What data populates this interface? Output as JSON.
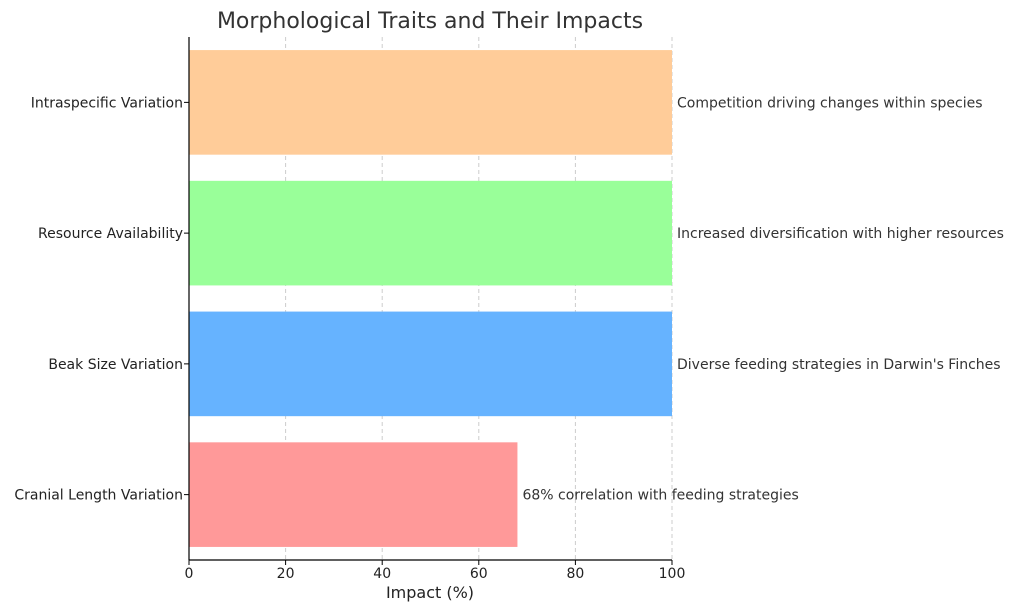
{
  "chart_data": {
    "type": "bar",
    "orientation": "horizontal",
    "title": "Morphological Traits and Their Impacts",
    "xlabel": "Impact (%)",
    "ylabel": "",
    "xlim": [
      0,
      100
    ],
    "xticks": [
      0,
      20,
      40,
      60,
      80,
      100
    ],
    "grid": "vertical-dashed",
    "categories": [
      "Cranial Length Variation",
      "Beak Size Variation",
      "Resource Availability",
      "Intraspecific Variation"
    ],
    "values": [
      68,
      100,
      100,
      100
    ],
    "colors": [
      "#ff9999",
      "#66b3ff",
      "#99ff99",
      "#ffcc99"
    ],
    "annotations": [
      "68% correlation with feeding strategies",
      "Diverse feeding strategies in Darwin's Finches",
      "Increased diversification with higher resources",
      "Competition driving changes within species"
    ]
  }
}
